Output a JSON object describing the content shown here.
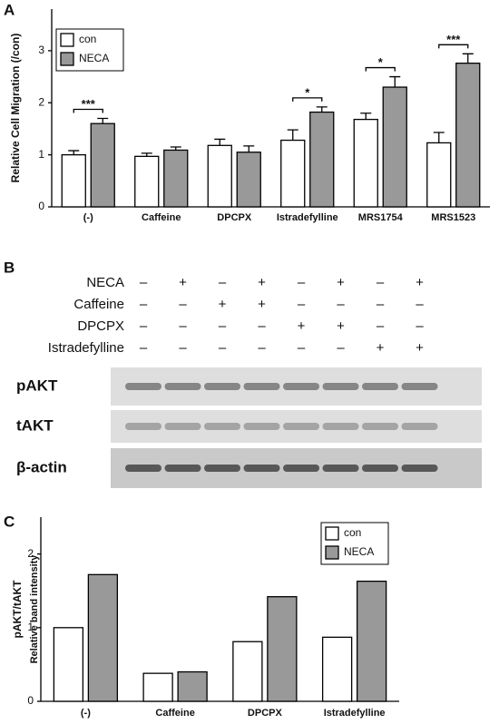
{
  "panel_labels": [
    "A",
    "B",
    "C"
  ],
  "chart_data": [
    {
      "type": "bar",
      "ylabel": [
        "Relative Cell Migration (/con)"
      ],
      "categories": [
        "(-)",
        "Caffeine",
        "DPCPX",
        "Istradefylline",
        "MRS1754",
        "MRS1523"
      ],
      "series": [
        {
          "name": "con",
          "color": "#ffffff",
          "values": [
            1.0,
            0.97,
            1.18,
            1.28,
            1.68,
            1.23
          ],
          "errors": [
            0.08,
            0.06,
            0.12,
            0.2,
            0.12,
            0.2
          ]
        },
        {
          "name": "NECA",
          "color": "#999999",
          "values": [
            1.6,
            1.09,
            1.05,
            1.82,
            2.3,
            2.76
          ],
          "errors": [
            0.1,
            0.06,
            0.12,
            0.1,
            0.2,
            0.18
          ]
        }
      ],
      "annotations": [
        {
          "text": "***",
          "category": "(-)"
        },
        {
          "text": "*",
          "category": "Istradefylline"
        },
        {
          "text": "*",
          "category": "MRS1754"
        },
        {
          "text": "***",
          "category": "MRS1523"
        }
      ],
      "ylim": [
        0,
        3.8
      ],
      "yticks": [
        0,
        1,
        2,
        3
      ],
      "legend": "top-left"
    },
    {
      "type": "bar",
      "ylabel": [
        "pAKT/tAKT",
        "Relative band intensity"
      ],
      "categories": [
        "(-)",
        "Caffeine",
        "DPCPX",
        "Istradefylline"
      ],
      "series": [
        {
          "name": "con",
          "color": "#ffffff",
          "values": [
            1.0,
            0.38,
            0.81,
            0.87
          ]
        },
        {
          "name": "NECA",
          "color": "#999999",
          "values": [
            1.72,
            0.4,
            1.42,
            1.63
          ]
        }
      ],
      "ylim": [
        0,
        2.5
      ],
      "yticks": [
        0,
        1,
        2
      ],
      "legend": "top-right"
    }
  ],
  "blot": {
    "treatments": [
      {
        "name": "NECA",
        "signs": [
          "–",
          "+",
          "–",
          "+",
          "–",
          "+",
          "–",
          "+"
        ]
      },
      {
        "name": "Caffeine",
        "signs": [
          "–",
          "–",
          "+",
          "+",
          "–",
          "–",
          "–",
          "–"
        ]
      },
      {
        "name": "DPCPX",
        "signs": [
          "–",
          "–",
          "–",
          "–",
          "+",
          "+",
          "–",
          "–"
        ]
      },
      {
        "name": "Istradefylline",
        "signs": [
          "–",
          "–",
          "–",
          "–",
          "–",
          "–",
          "+",
          "+"
        ]
      }
    ],
    "bands": [
      "pAKT",
      "tAKT",
      "β-actin"
    ]
  }
}
